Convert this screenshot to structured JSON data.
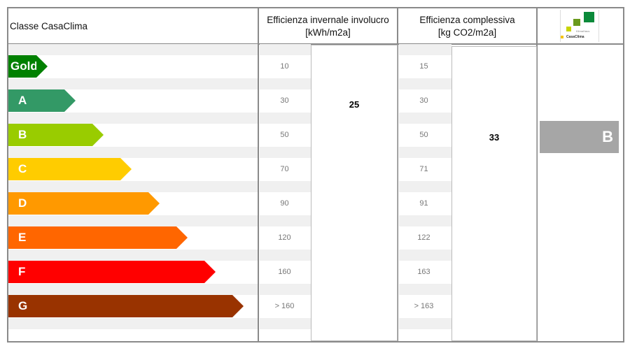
{
  "header": {
    "class_label": "Classe CasaClima",
    "winter_efficiency": "Efficienza invernale involucro",
    "winter_unit": "[kWh/m2a]",
    "overall_efficiency": "Efficienza complessiva",
    "overall_unit": "[kg CO2/m2a]",
    "logo_text": "KlimaHaus CasaClima"
  },
  "classes": [
    {
      "label": "Gold",
      "color": "#008000",
      "winter": "10",
      "overall": "15"
    },
    {
      "label": "A",
      "color": "#339966",
      "winter": "30",
      "overall": "30"
    },
    {
      "label": "B",
      "color": "#99cc00",
      "winter": "50",
      "overall": "50"
    },
    {
      "label": "C",
      "color": "#ffcc00",
      "winter": "70",
      "overall": "71"
    },
    {
      "label": "D",
      "color": "#ff9900",
      "winter": "90",
      "overall": "91"
    },
    {
      "label": "E",
      "color": "#ff6600",
      "winter": "120",
      "overall": "122"
    },
    {
      "label": "F",
      "color": "#ff0000",
      "winter": "160",
      "overall": "163"
    },
    {
      "label": "G",
      "color": "#993300",
      "winter": "> 160",
      "overall": "> 163"
    }
  ],
  "result": {
    "winter_value": "25",
    "overall_value": "33",
    "class": "B",
    "class_color": "#a6a6a6"
  }
}
